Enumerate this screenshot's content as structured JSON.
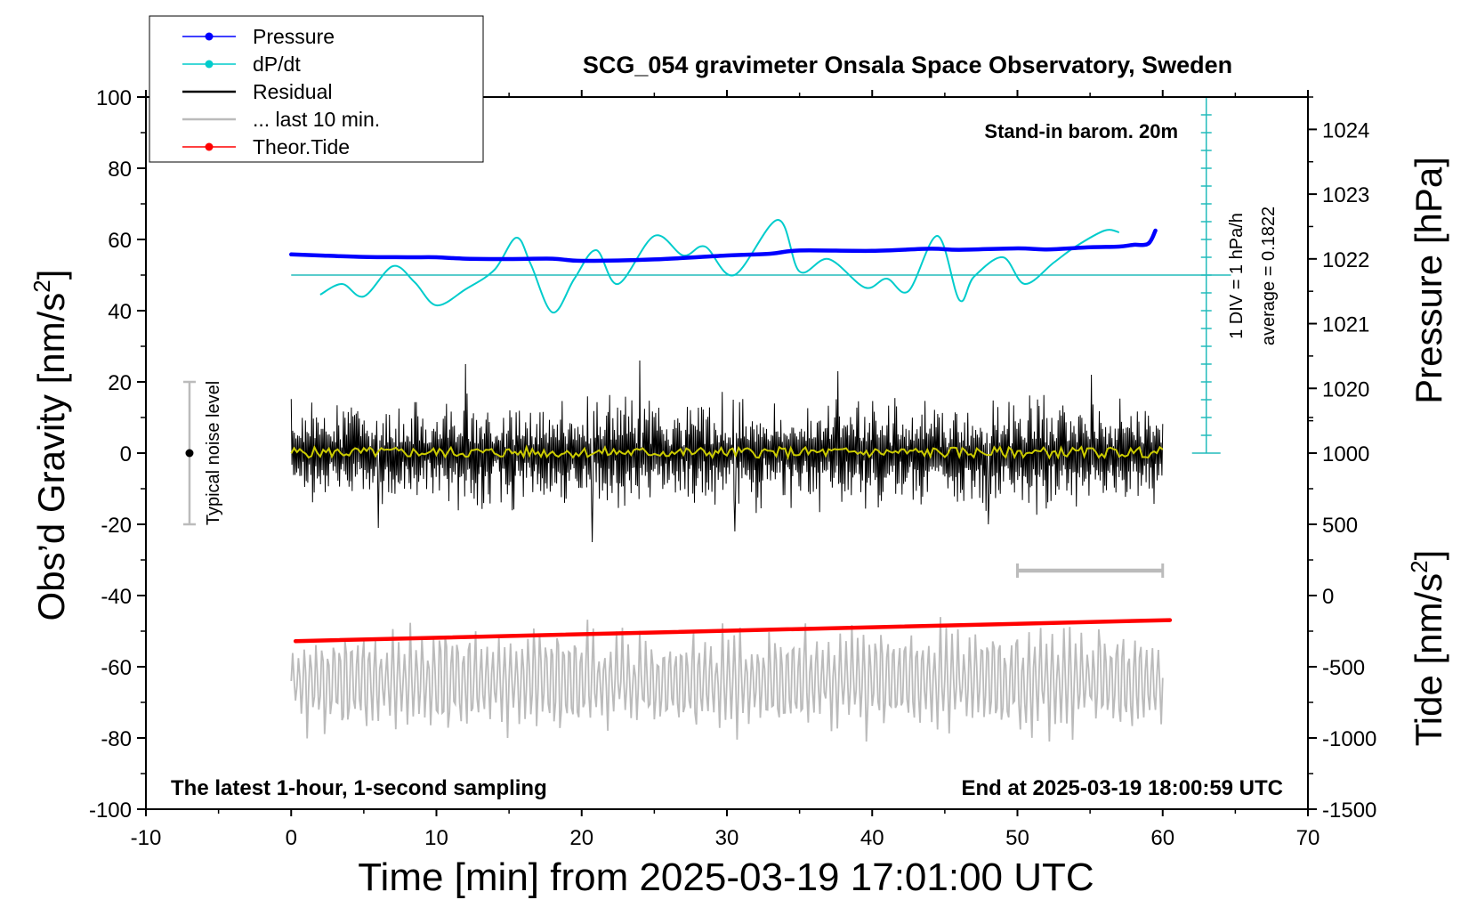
{
  "chart_data": {
    "type": "line",
    "title": "SCG_054 gravimeter Onsala Space Observatory, Sweden",
    "xlabel": "Time [min] from 2025-03-19 17:01:00 UTC",
    "ylabel_left": "Obs’d Gravity [nm/s",
    "ylabel_left_sup": "2",
    "ylabel_left_end": "]",
    "ylabel_pressure": "Pressure [hPa]",
    "ylabel_tide": "Tide [nm/s",
    "ylabel_tide_sup": "2",
    "ylabel_tide_end": "]",
    "xlim": [
      -10,
      70
    ],
    "ylim_left": [
      -100,
      100
    ],
    "x_ticks": [
      "-10",
      "0",
      "10",
      "20",
      "30",
      "40",
      "50",
      "60",
      "70"
    ],
    "y_ticks_left": [
      "100",
      "80",
      "60",
      "40",
      "20",
      "0",
      "-20",
      "-40",
      "-60",
      "-80",
      "-100"
    ],
    "pressure_ticks": [
      "1024",
      "1023",
      "1022",
      "1021",
      "1020"
    ],
    "pressure_axis": {
      "value_at_gravity_0": 1019.0,
      "value_at_gravity_100": 1024.5
    },
    "tide_ticks": [
      "1000",
      "500",
      "0",
      "-500",
      "-1000",
      "-1500"
    ],
    "tide_axis": {
      "value_at_gravity_minus100": -1500,
      "value_at_gravity_20": 1500
    },
    "legend": [
      {
        "label": "Pressure",
        "color": "#0000ff",
        "marker": "dot"
      },
      {
        "label": "dP/dt",
        "color": "#00cccc",
        "marker": "dot"
      },
      {
        "label": "Residual",
        "color": "#000000",
        "marker": "line"
      },
      {
        "label": "... last 10 min.",
        "color": "#bbbbbb",
        "marker": "line"
      },
      {
        "label": "Theor.Tide",
        "color": "#ff0000",
        "marker": "dot"
      }
    ],
    "annotations": {
      "stand_in": "Stand-in barom. 20m",
      "div_label": "1 DIV = 1 hPa/h",
      "average_label": "average = 0.1822",
      "noise_label": "Typical noise level",
      "bottom_left": "The latest 1-hour, 1-second sampling",
      "bottom_right": "End at 2025-03-19 18:00:59 UTC"
    },
    "noise_bar": {
      "x": -7,
      "ymin": -20,
      "ymax": 20
    },
    "last10_bar": {
      "xmin": 50,
      "xmax": 60,
      "y": -33
    },
    "dpdt_scale": {
      "x": 63,
      "zero": 50,
      "top": 100,
      "bottom": 0,
      "tick_step": 5
    },
    "series": [
      {
        "name": "Pressure",
        "color": "#0000ff",
        "x": [
          0,
          2,
          5,
          8,
          10,
          12,
          15,
          18,
          20,
          25,
          30,
          33,
          35,
          40,
          44,
          46,
          50,
          52,
          55,
          57,
          58,
          59,
          59.5
        ],
        "y": [
          55.8,
          55.5,
          55.1,
          55.0,
          55.0,
          54.6,
          54.5,
          54.6,
          54.0,
          54.4,
          55.5,
          56.0,
          56.9,
          56.8,
          57.4,
          57.1,
          57.5,
          57.2,
          57.8,
          58.0,
          58.5,
          58.8,
          62.5
        ]
      },
      {
        "name": "dP/dt",
        "color": "#00cccc",
        "x": [
          2,
          3.5,
          5,
          7,
          8.5,
          10,
          12,
          14,
          15.5,
          16.5,
          18,
          19.5,
          21,
          22.5,
          25,
          27,
          28.5,
          30.5,
          33.5,
          35,
          37,
          39.5,
          41,
          42.5,
          44.5,
          46,
          47,
          49,
          50.5,
          52.5,
          54,
          56,
          57
        ],
        "y": [
          44.5,
          47.5,
          44.0,
          52.5,
          48.0,
          41.5,
          46.0,
          51.5,
          60.5,
          53.0,
          39.5,
          49.0,
          57.0,
          47.5,
          61.0,
          55.5,
          58.0,
          50.0,
          65.5,
          51.0,
          54.5,
          46.5,
          49.0,
          45.5,
          61.0,
          43.0,
          49.5,
          55.0,
          47.5,
          53.5,
          58.0,
          62.5,
          62.0
        ]
      },
      {
        "name": "Residual",
        "color": "#000000",
        "x_range": [
          0,
          60
        ],
        "amplitude": 10,
        "peaks": [
          -21,
          25,
          -25,
          26,
          -22,
          23,
          -20,
          22
        ]
      },
      {
        "name": "Residual smooth",
        "color": "#cccc00",
        "x_range": [
          0,
          60
        ],
        "center": 0.2,
        "amplitude": 1.5
      },
      {
        "name": "... last 10 min.",
        "color": "#bbbbbb",
        "x_range": [
          0,
          60
        ],
        "center": -64,
        "amplitude": 12,
        "ylim_band": [
          -81,
          -44
        ]
      },
      {
        "name": "Theor.Tide",
        "color": "#ff0000",
        "x": [
          0.3,
          60.5
        ],
        "y": [
          -52.8,
          -46.9
        ]
      }
    ]
  }
}
